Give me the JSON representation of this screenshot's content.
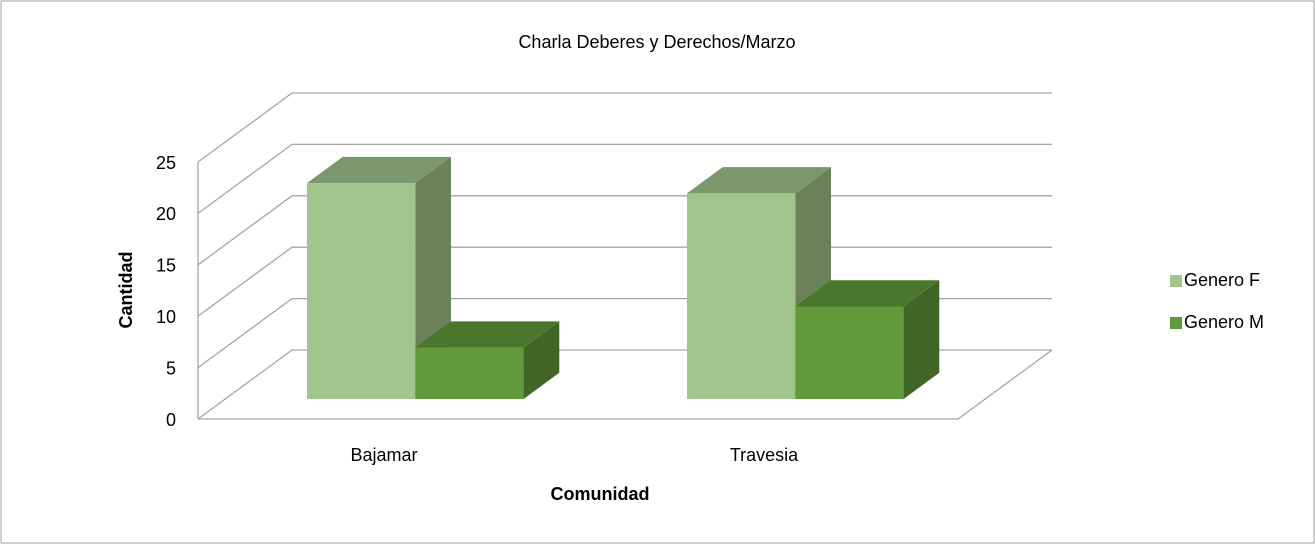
{
  "chart_data": {
    "type": "bar3d",
    "title": "Charla Deberes y Derechos/Marzo",
    "x_label": "Comunidad",
    "y_label": "Cantidad",
    "categories": [
      "Bajamar",
      "Travesia"
    ],
    "series": [
      {
        "name": "Genero F",
        "color": "#a0c48c",
        "values": [
          21,
          20
        ]
      },
      {
        "name": "Genero M",
        "color": "#62993b",
        "values": [
          5,
          9
        ]
      }
    ],
    "ylim": [
      0,
      25
    ],
    "yticks": [
      0,
      5,
      10,
      15,
      20,
      25
    ],
    "grid": true,
    "legend": "right"
  }
}
